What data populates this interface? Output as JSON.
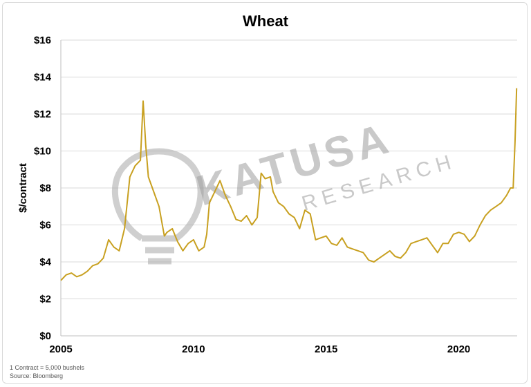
{
  "chart_data": {
    "type": "line",
    "title": "Wheat",
    "xlabel": "",
    "ylabel": "$/contract",
    "xlim": [
      2005,
      2022.2
    ],
    "ylim": [
      0,
      16
    ],
    "x_ticks": [
      2005,
      2010,
      2015,
      2020
    ],
    "y_ticks": [
      "$0",
      "$2",
      "$4",
      "$6",
      "$8",
      "$10",
      "$12",
      "$14",
      "$16"
    ],
    "y_tick_values": [
      0,
      2,
      4,
      6,
      8,
      10,
      12,
      14,
      16
    ],
    "grid": "horizontal",
    "line_color": "#c8a020",
    "series": [
      {
        "name": "",
        "x": [
          2005.0,
          2005.2,
          2005.4,
          2005.6,
          2005.8,
          2006.0,
          2006.2,
          2006.4,
          2006.6,
          2006.8,
          2007.0,
          2007.2,
          2007.4,
          2007.6,
          2007.8,
          2008.0,
          2008.1,
          2008.2,
          2008.3,
          2008.5,
          2008.7,
          2008.9,
          2009.0,
          2009.2,
          2009.4,
          2009.6,
          2009.8,
          2010.0,
          2010.2,
          2010.4,
          2010.5,
          2010.6,
          2010.8,
          2011.0,
          2011.2,
          2011.4,
          2011.6,
          2011.8,
          2012.0,
          2012.2,
          2012.4,
          2012.55,
          2012.7,
          2012.9,
          2013.0,
          2013.2,
          2013.4,
          2013.6,
          2013.8,
          2014.0,
          2014.2,
          2014.4,
          2014.6,
          2014.8,
          2015.0,
          2015.2,
          2015.4,
          2015.6,
          2015.8,
          2016.0,
          2016.2,
          2016.4,
          2016.6,
          2016.8,
          2017.0,
          2017.2,
          2017.4,
          2017.6,
          2017.8,
          2018.0,
          2018.2,
          2018.4,
          2018.6,
          2018.8,
          2019.0,
          2019.2,
          2019.4,
          2019.6,
          2019.8,
          2020.0,
          2020.2,
          2020.4,
          2020.6,
          2020.8,
          2021.0,
          2021.2,
          2021.4,
          2021.6,
          2021.8,
          2021.95,
          2022.05,
          2022.12,
          2022.18
        ],
        "values": [
          3.0,
          3.3,
          3.4,
          3.2,
          3.3,
          3.5,
          3.8,
          3.9,
          4.2,
          5.2,
          4.8,
          4.6,
          5.8,
          8.6,
          9.2,
          9.5,
          12.7,
          10.3,
          8.6,
          7.8,
          7.0,
          5.4,
          5.6,
          5.8,
          5.1,
          4.6,
          5.0,
          5.2,
          4.6,
          4.8,
          5.5,
          7.2,
          7.8,
          8.4,
          7.6,
          7.0,
          6.3,
          6.2,
          6.5,
          6.0,
          6.4,
          8.8,
          8.5,
          8.6,
          7.8,
          7.2,
          7.0,
          6.6,
          6.4,
          5.8,
          6.8,
          6.6,
          5.2,
          5.3,
          5.4,
          5.0,
          4.9,
          5.3,
          4.8,
          4.7,
          4.6,
          4.5,
          4.1,
          4.0,
          4.2,
          4.4,
          4.6,
          4.3,
          4.2,
          4.5,
          5.0,
          5.1,
          5.2,
          5.3,
          4.9,
          4.5,
          5.0,
          5.0,
          5.5,
          5.6,
          5.5,
          5.1,
          5.4,
          6.0,
          6.5,
          6.8,
          7.0,
          7.2,
          7.6,
          8.0,
          8.0,
          10.5,
          13.4
        ]
      }
    ],
    "watermark": {
      "brand": "KATUSA",
      "sub": "RESEARCH"
    },
    "notes": [
      "1 Contract = 5,000 bushels",
      "Source: Bloomberg"
    ]
  }
}
